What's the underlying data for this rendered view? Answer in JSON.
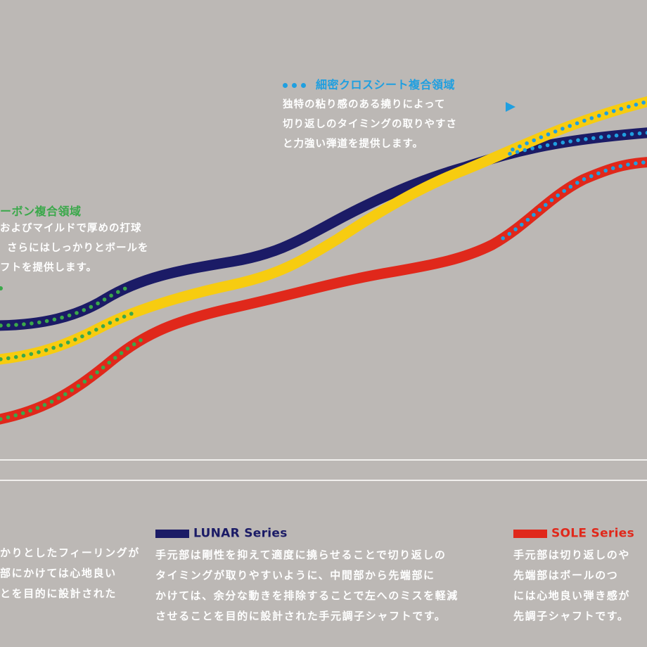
{
  "annotations": {
    "cross_sheet": {
      "title": "細密クロスシート複合領域",
      "lines": [
        "独特の粘り感のある撓りによって",
        "切り返しのタイミングの取りやすさ",
        "と力強い弾道を提供します。"
      ],
      "color": "#1f9fe0"
    },
    "carbon": {
      "title": "ーボン複合領域",
      "lines": [
        "およびマイルドで厚めの打球",
        "さらにはしっかりとボールを",
        "フトを提供します。"
      ],
      "color": "#3aa84a"
    }
  },
  "curves": [
    {
      "name": "navy",
      "color": "#1b1b66",
      "dot_color": "#3aa84a"
    },
    {
      "name": "yellow",
      "color": "#f7cc10",
      "dot_color": "#3aa84a"
    },
    {
      "name": "red",
      "color": "#e0281b",
      "dot_color": "#3aa84a"
    }
  ],
  "bottom": {
    "left_partial": {
      "lines": [
        "かりとしたフィーリングが",
        "部にかけては心地良い",
        "とを目的に設計された"
      ]
    },
    "lunar": {
      "label": "LUNAR Series",
      "color": "#1b1b66",
      "lines": [
        "手元部は剛性を抑えて適度に撓らせることで切り返しの",
        "タイミングが取りやすいように、中間部から先端部に",
        "かけては、余分な動きを排除することで左へのミスを軽減",
        "させることを目的に設計された手元調子シャフトです。"
      ]
    },
    "sole": {
      "label": "SOLE Series",
      "color": "#e0281b",
      "lines": [
        "手元部は切り返しのや",
        "先端部はボールのつ",
        "には心地良い弾き感が",
        "先調子シャフトです。"
      ]
    }
  }
}
